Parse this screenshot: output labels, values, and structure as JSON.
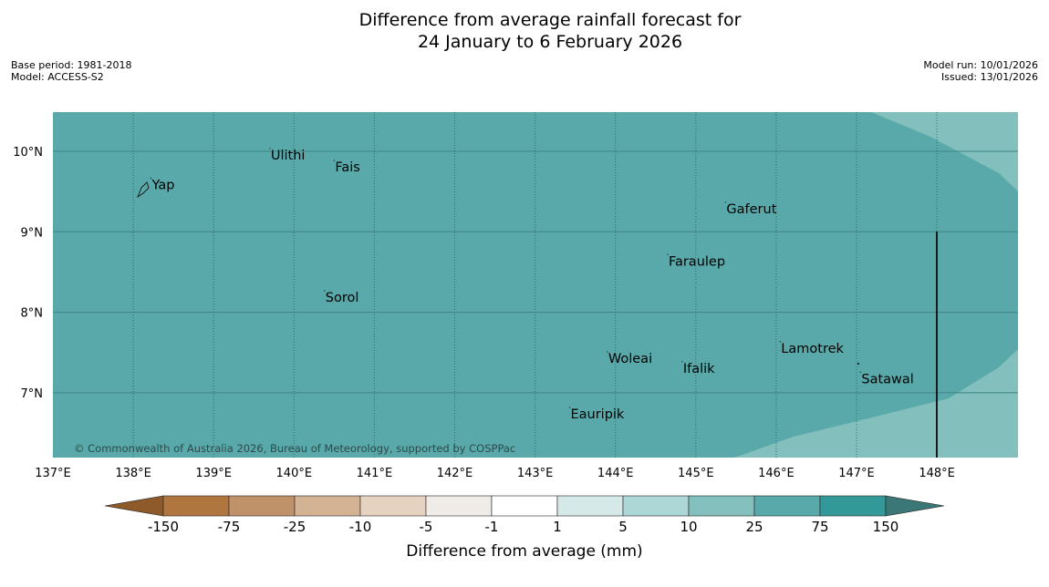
{
  "title_line1": "Difference from average rainfall forecast for",
  "title_line2": "24 January to 6 February 2026",
  "base_period": "Base period: 1981-2018",
  "model": "Model: ACCESS-S2",
  "model_run": "Model run: 10/01/2026",
  "issued": "Issued: 13/01/2026",
  "copyright": "© Commonwealth of Australia 2026, Bureau of Meteorology, supported by COSPPac",
  "lat_labels": [
    {
      "v": 10,
      "t": "10°N"
    },
    {
      "v": 9,
      "t": "9°N"
    },
    {
      "v": 8,
      "t": "8°N"
    },
    {
      "v": 7,
      "t": "7°N"
    }
  ],
  "lon_labels": [
    {
      "v": 137,
      "t": "137°E"
    },
    {
      "v": 138,
      "t": "138°E"
    },
    {
      "v": 139,
      "t": "139°E"
    },
    {
      "v": 140,
      "t": "140°E"
    },
    {
      "v": 141,
      "t": "141°E"
    },
    {
      "v": 142,
      "t": "142°E"
    },
    {
      "v": 143,
      "t": "143°E"
    },
    {
      "v": 144,
      "t": "144°E"
    },
    {
      "v": 145,
      "t": "145°E"
    },
    {
      "v": 146,
      "t": "146°E"
    },
    {
      "v": 147,
      "t": "147°E"
    },
    {
      "v": 148,
      "t": "148°E"
    }
  ],
  "places": [
    {
      "name": "Yap",
      "lon": 138.22,
      "lat": 9.53
    },
    {
      "name": "Ulithi",
      "lon": 139.7,
      "lat": 9.9
    },
    {
      "name": "Fais",
      "lon": 140.5,
      "lat": 9.75
    },
    {
      "name": "Gaferut",
      "lon": 145.37,
      "lat": 9.23
    },
    {
      "name": "Faraulep",
      "lon": 144.65,
      "lat": 8.58
    },
    {
      "name": "Sorol",
      "lon": 140.38,
      "lat": 8.13
    },
    {
      "name": "Lamotrek",
      "lon": 146.05,
      "lat": 7.5
    },
    {
      "name": "Woleai",
      "lon": 143.9,
      "lat": 7.37
    },
    {
      "name": "Ifalik",
      "lon": 144.83,
      "lat": 7.25
    },
    {
      "name": "Satawal",
      "lon": 147.05,
      "lat": 7.12
    },
    {
      "name": "Eauripik",
      "lon": 143.43,
      "lat": 6.68
    }
  ],
  "colorbar": {
    "ticks": [
      "-150",
      "-75",
      "-25",
      "-10",
      "-5",
      "-1",
      "1",
      "5",
      "10",
      "25",
      "75",
      "150"
    ],
    "colors": [
      "#b07640",
      "#c0926a",
      "#d4b294",
      "#e6d2c1",
      "#efece8",
      "#ffffff",
      "#d5e9e8",
      "#acd7d6",
      "#82bfbd",
      "#5aa9aa",
      "#339998"
    ],
    "under_color": "#8e5a2a",
    "over_color": "#3a7776",
    "label": "Difference from average (mm)"
  },
  "map_colors": {
    "main": "#5aa9aa",
    "light": "#82bfbd"
  }
}
